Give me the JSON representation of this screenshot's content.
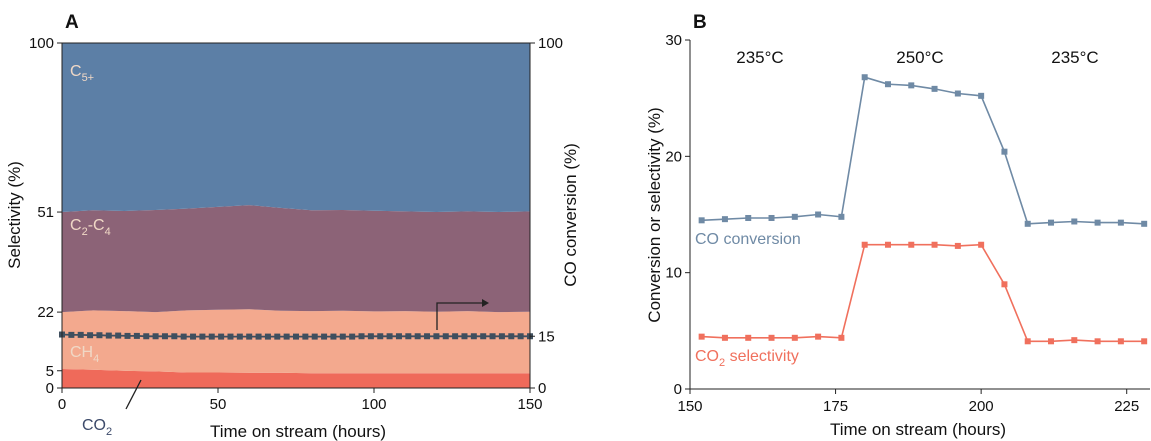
{
  "chart_data": [
    {
      "panel": "A",
      "type": "area",
      "xlabel": "Time on stream (hours)",
      "ylabel_left": "Selectivity (%)",
      "ylabel_right": "CO conversion (%)",
      "xlim": [
        0,
        150
      ],
      "ylim": [
        0,
        100
      ],
      "x_ticks": [
        0,
        50,
        100,
        150
      ],
      "y_ticks_left": [
        0,
        5,
        22,
        51,
        100
      ],
      "y_ticks_right": [
        0,
        15,
        100
      ],
      "series": [
        {
          "name": "CO2",
          "color": "#ef6a5a",
          "x": [
            0,
            10,
            20,
            30,
            40,
            50,
            60,
            70,
            80,
            90,
            100,
            110,
            120,
            130,
            140,
            150
          ],
          "upper": [
            5.5,
            5.3,
            5.0,
            4.8,
            4.5,
            4.5,
            4.4,
            4.4,
            4.3,
            4.3,
            4.3,
            4.3,
            4.3,
            4.3,
            4.3,
            4.3
          ]
        },
        {
          "name": "CH4",
          "color": "#f3a98e",
          "x": [
            0,
            10,
            20,
            30,
            40,
            50,
            60,
            70,
            80,
            90,
            100,
            110,
            120,
            130,
            140,
            150
          ],
          "upper": [
            22,
            22.5,
            22.3,
            22,
            22.5,
            22.7,
            22.8,
            22.4,
            22.3,
            22.4,
            22.2,
            22.3,
            22.1,
            22.3,
            22.0,
            22.1
          ]
        },
        {
          "name": "C2-C4",
          "color": "#8c6377",
          "x": [
            0,
            10,
            20,
            30,
            40,
            50,
            60,
            70,
            80,
            90,
            100,
            110,
            120,
            130,
            140,
            150
          ],
          "upper": [
            51,
            51.5,
            51.3,
            51.6,
            52.0,
            52.5,
            53.0,
            52.2,
            51.5,
            51.6,
            51.4,
            51.2,
            51.0,
            51.2,
            51.0,
            51.2
          ]
        },
        {
          "name": "C5+",
          "color": "#5c7fa6",
          "x": [
            0,
            150
          ],
          "upper": [
            100,
            100
          ]
        }
      ],
      "band_labels": [
        {
          "name": "C5+",
          "main": "C",
          "sub": "5+",
          "color": "#f0d8c6"
        },
        {
          "name": "C2-C4",
          "main": "C",
          "sub": "2",
          "mid": "-C",
          "sub2": "4",
          "color": "#f0d8c6"
        },
        {
          "name": "CH4",
          "main": "CH",
          "sub": "4",
          "color": "#f0d8c6"
        },
        {
          "name": "CO2",
          "main": "CO",
          "sub": "2",
          "color": "#3c4a6a"
        }
      ],
      "conversion": {
        "name": "CO conversion",
        "color": "#3f4f5f",
        "x": [
          0,
          3,
          6,
          9,
          12,
          15,
          18,
          21,
          24,
          27,
          30,
          33,
          36,
          39,
          42,
          45,
          48,
          51,
          54,
          57,
          60,
          63,
          66,
          69,
          72,
          75,
          78,
          81,
          84,
          87,
          90,
          93,
          96,
          99,
          102,
          105,
          108,
          111,
          114,
          117,
          120,
          123,
          126,
          129,
          132,
          135,
          138,
          141,
          144,
          147,
          150
        ],
        "values": [
          15.5,
          15.4,
          15.4,
          15.3,
          15.3,
          15.2,
          15.2,
          15.1,
          15.1,
          15.0,
          15.0,
          15.0,
          15.0,
          14.9,
          14.9,
          14.9,
          14.9,
          14.9,
          14.9,
          14.9,
          14.9,
          14.9,
          14.9,
          14.9,
          14.9,
          14.9,
          14.9,
          14.9,
          14.9,
          14.9,
          14.9,
          14.9,
          15.0,
          15.0,
          15.0,
          15.0,
          15.0,
          15.0,
          15.0,
          15.0,
          15.0,
          15.0,
          15.0,
          15.0,
          15.0,
          15.0,
          15.0,
          15.0,
          15.0,
          15.0,
          15.0
        ]
      }
    },
    {
      "panel": "B",
      "type": "line",
      "xlabel": "Time on stream (hours)",
      "ylabel": "Conversion or  selectivity (%)",
      "xlim": [
        150,
        229
      ],
      "ylim": [
        0,
        30
      ],
      "x_ticks": [
        150,
        175,
        200,
        225
      ],
      "y_ticks": [
        0,
        10,
        20,
        30
      ],
      "temperature_labels": [
        "235°C",
        "250°C",
        "235°C"
      ],
      "series": [
        {
          "name": "CO conversion",
          "color": "#6f8aa5",
          "x": [
            152,
            156,
            160,
            164,
            168,
            172,
            176,
            180,
            184,
            188,
            192,
            196,
            200,
            204,
            208,
            212,
            216,
            220,
            224,
            228
          ],
          "y": [
            14.5,
            14.6,
            14.7,
            14.7,
            14.8,
            15.0,
            14.8,
            26.8,
            26.2,
            26.1,
            25.8,
            25.4,
            25.2,
            20.4,
            14.2,
            14.3,
            14.4,
            14.3,
            14.3,
            14.2
          ]
        },
        {
          "name": "CO2 selectivity",
          "color": "#f0705d",
          "x": [
            152,
            156,
            160,
            164,
            168,
            172,
            176,
            180,
            184,
            188,
            192,
            196,
            200,
            204,
            208,
            212,
            216,
            220,
            224,
            228
          ],
          "y": [
            4.5,
            4.4,
            4.4,
            4.4,
            4.4,
            4.5,
            4.4,
            12.4,
            12.4,
            12.4,
            12.4,
            12.3,
            12.4,
            9.0,
            4.1,
            4.1,
            4.2,
            4.1,
            4.1,
            4.1
          ]
        }
      ],
      "series_labels": [
        {
          "name": "CO conversion",
          "main": "CO conversion",
          "color": "#6f8aa5"
        },
        {
          "name": "CO2 selectivity",
          "main": "CO",
          "sub": "2",
          "rest": " selectivity",
          "color": "#f0705d"
        }
      ]
    }
  ]
}
